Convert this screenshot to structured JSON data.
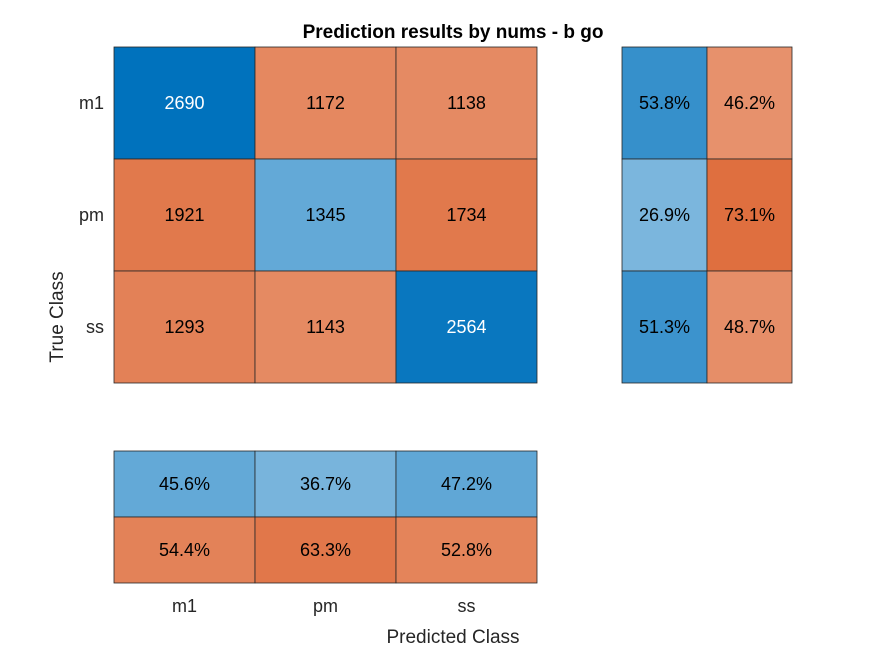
{
  "chart_data": {
    "type": "heatmap",
    "title": "Prediction results by nums - b go",
    "xlabel": "Predicted Class",
    "ylabel": "True Class",
    "classes": [
      "m1",
      "pm",
      "ss"
    ],
    "matrix": [
      [
        2690,
        1172,
        1138
      ],
      [
        1921,
        1345,
        1734
      ],
      [
        1293,
        1143,
        2564
      ]
    ],
    "row_summary": [
      [
        "53.8%",
        "46.2%"
      ],
      [
        "26.9%",
        "73.1%"
      ],
      [
        "51.3%",
        "48.7%"
      ]
    ],
    "column_summary": [
      [
        "45.6%",
        "36.7%",
        "47.2%"
      ],
      [
        "54.4%",
        "63.3%",
        "52.8%"
      ]
    ]
  }
}
